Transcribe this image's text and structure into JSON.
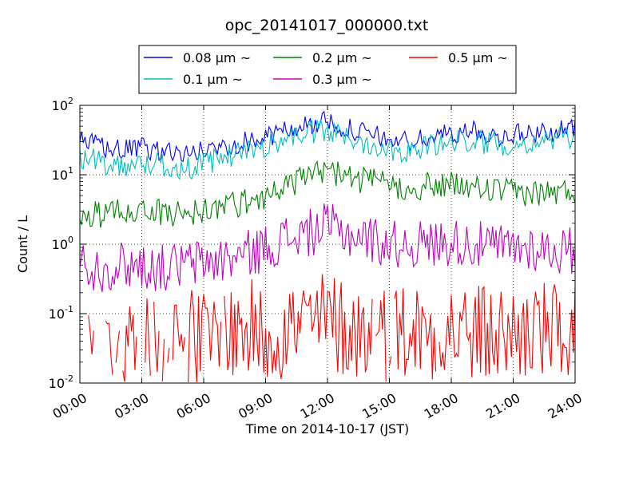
{
  "chart_data": {
    "type": "line",
    "title": "opc_20141017_000000.txt",
    "xlabel": "Time on 2014-10-17 (JST)",
    "ylabel": "Count / L",
    "x_range_hours": [
      0,
      24
    ],
    "x_ticks": [
      "00:00",
      "03:00",
      "06:00",
      "09:00",
      "12:00",
      "15:00",
      "18:00",
      "21:00",
      "24:00"
    ],
    "y_scale": "log",
    "ylim": [
      0.01,
      100
    ],
    "y_ticks": [
      {
        "base": "10",
        "exp": "-2",
        "value": 0.01
      },
      {
        "base": "10",
        "exp": "-1",
        "value": 0.1
      },
      {
        "base": "10",
        "exp": "0",
        "value": 1
      },
      {
        "base": "10",
        "exp": "1",
        "value": 10
      },
      {
        "base": "10",
        "exp": "2",
        "value": 100
      }
    ],
    "grid": true,
    "legend_placement": "top-center",
    "series": [
      {
        "name": "0.08 μm ~",
        "color": "#0000ff",
        "x_hours": [
          0,
          1,
          2,
          3,
          4,
          5,
          6,
          7,
          8,
          9,
          10,
          11,
          12,
          13,
          14,
          15,
          16,
          17,
          18,
          19,
          20,
          21,
          22,
          23,
          24
        ],
        "values": [
          30,
          26,
          22,
          24,
          22,
          20,
          22,
          26,
          30,
          34,
          44,
          52,
          58,
          46,
          38,
          32,
          30,
          34,
          40,
          42,
          36,
          38,
          40,
          42,
          46
        ]
      },
      {
        "name": "0.1 μm ~",
        "color": "#00bfbf",
        "x_hours": [
          0,
          1,
          2,
          3,
          4,
          5,
          6,
          7,
          8,
          9,
          10,
          11,
          12,
          13,
          14,
          15,
          16,
          17,
          18,
          19,
          20,
          21,
          22,
          23,
          24
        ],
        "values": [
          18,
          15,
          14,
          14,
          14,
          12,
          14,
          18,
          22,
          26,
          34,
          40,
          42,
          34,
          28,
          24,
          22,
          26,
          30,
          32,
          28,
          28,
          30,
          32,
          34
        ]
      },
      {
        "name": "0.2 μm ~",
        "color": "#008000",
        "x_hours": [
          0,
          1,
          2,
          3,
          4,
          5,
          6,
          7,
          8,
          9,
          10,
          11,
          12,
          13,
          14,
          15,
          16,
          17,
          18,
          19,
          20,
          21,
          22,
          23,
          24
        ],
        "values": [
          2.8,
          2.6,
          3.0,
          3.2,
          2.8,
          2.8,
          3.0,
          3.6,
          4.0,
          5.0,
          7.0,
          9.0,
          12.0,
          9.0,
          8.0,
          7.0,
          6.5,
          7.0,
          7.0,
          6.5,
          6.0,
          5.5,
          5.5,
          5.5,
          6.0
        ]
      },
      {
        "name": "0.3 μm ~",
        "color": "#bf00bf",
        "x_hours": [
          0,
          1,
          2,
          3,
          4,
          5,
          6,
          7,
          8,
          9,
          10,
          11,
          12,
          13,
          14,
          15,
          16,
          17,
          18,
          19,
          20,
          21,
          22,
          23,
          24
        ],
        "values": [
          0.5,
          0.45,
          0.5,
          0.5,
          0.45,
          0.5,
          0.55,
          0.6,
          0.7,
          0.9,
          1.2,
          1.4,
          1.8,
          1.4,
          1.2,
          1.0,
          1.0,
          1.0,
          1.1,
          1.0,
          0.9,
          0.9,
          0.9,
          0.8,
          0.8
        ]
      },
      {
        "name": "0.5 μm ~",
        "color": "#ff0000",
        "x_hours": [
          0,
          1,
          2,
          3,
          4,
          5,
          6,
          7,
          8,
          9,
          10,
          11,
          12,
          13,
          14,
          15,
          16,
          17,
          18,
          19,
          20,
          21,
          22,
          23,
          24
        ],
        "values": [
          0.03,
          0.02,
          0.04,
          0.03,
          0.03,
          0.05,
          0.04,
          0.05,
          0.06,
          0.05,
          0.06,
          0.07,
          0.08,
          0.06,
          0.05,
          0.05,
          0.06,
          0.05,
          0.06,
          0.05,
          0.05,
          0.05,
          0.06,
          0.05,
          0.05
        ]
      }
    ]
  }
}
